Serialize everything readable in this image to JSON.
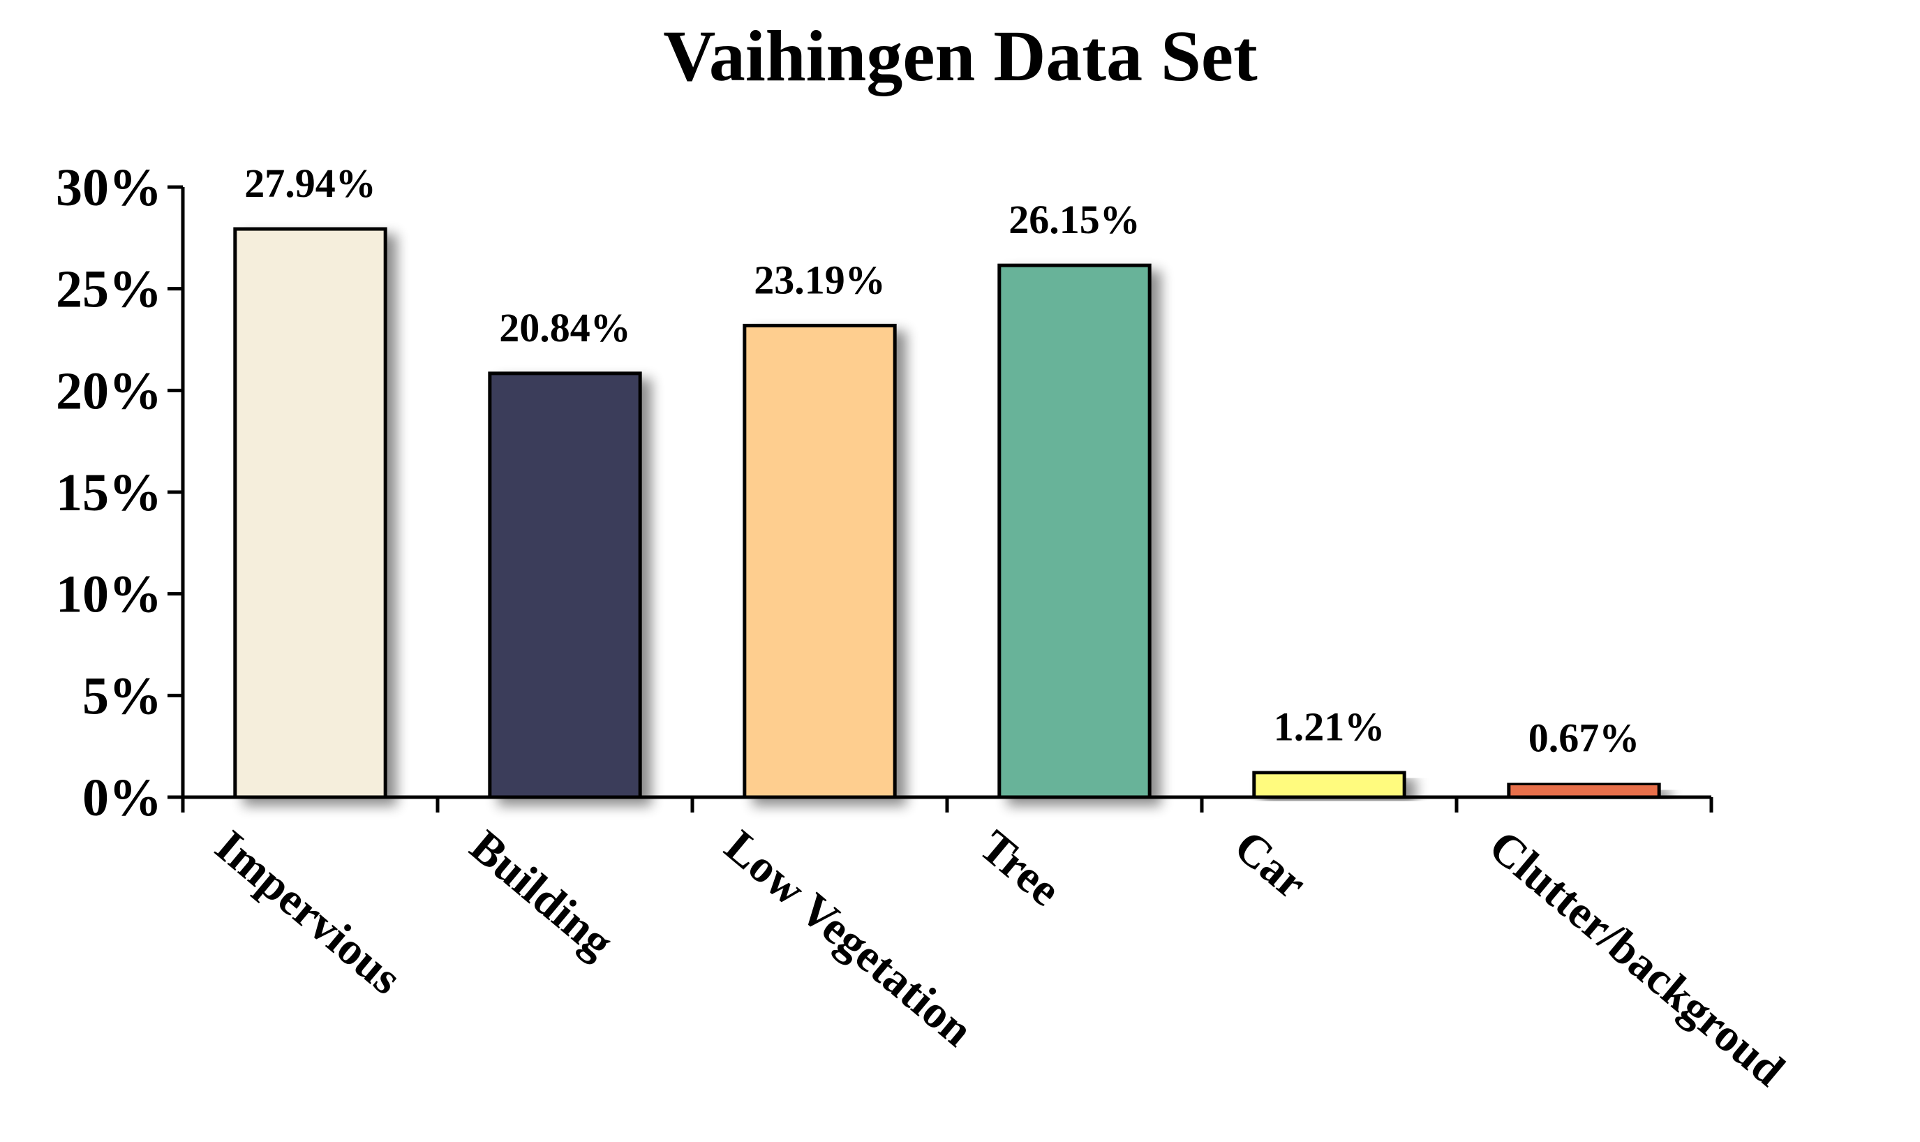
{
  "chart_data": {
    "type": "bar",
    "title": "Vaihingen Data Set",
    "xlabel": "",
    "ylabel": "",
    "categories": [
      "Impervious",
      "Building",
      "Low Vegetation",
      "Tree",
      "Car",
      "Clutter/backgroud"
    ],
    "values": [
      27.94,
      20.84,
      23.19,
      26.15,
      1.21,
      0.67
    ],
    "data_labels": [
      "27.94%",
      "20.84%",
      "23.19%",
      "26.15%",
      "1.21%",
      "0.67%"
    ],
    "colors": [
      "#F5EEDC",
      "#3A3D5A",
      "#FECE8F",
      "#67B399",
      "#FFFB7E",
      "#E8704C"
    ],
    "ylim": [
      0,
      30
    ],
    "yticks": [
      0,
      5,
      10,
      15,
      20,
      25,
      30
    ],
    "ytick_labels": [
      "0%",
      "5%",
      "10%",
      "15%",
      "20%",
      "25%",
      "30%"
    ],
    "grid": false,
    "legend": "none"
  }
}
